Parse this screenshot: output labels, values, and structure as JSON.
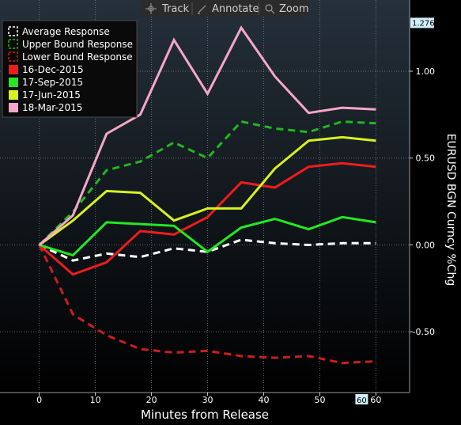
{
  "toolbar": {
    "track_label": "Track",
    "annotate_label": "Annotate",
    "zoom_label": "Zoom"
  },
  "colors": {
    "background_top": "#25303b",
    "background_bottom": "#000000",
    "axis_text": "#ffffff",
    "last_price_tag": "#cfeffb",
    "toolbar_bg": "#2b2b2b"
  },
  "chart_data": {
    "type": "line",
    "xlabel": "Minutes from Release",
    "ylabel": "EURUSD BGN Curncy %Chg",
    "xlim": [
      -7,
      66
    ],
    "ylim": [
      -0.85,
      1.41
    ],
    "x_ticks": [
      0,
      10,
      20,
      30,
      40,
      50,
      60
    ],
    "y_ticks": [
      1.0,
      0.5,
      0.0,
      -0.5
    ],
    "y_tick_labels": [
      "1.00",
      "0.50",
      "0.00",
      "-0.50"
    ],
    "y_last_value_label": "1.276",
    "y_last_value": 1.276,
    "x_last_value_label": "60",
    "grid": true,
    "legend_position": "top-left",
    "series": [
      {
        "name": "Average Response",
        "color": "#ffffff",
        "dash": true,
        "x": [
          0,
          6,
          12,
          18,
          24,
          30,
          36,
          42,
          48,
          54,
          60
        ],
        "y": [
          0.0,
          -0.09,
          -0.05,
          -0.07,
          -0.02,
          -0.04,
          0.03,
          0.01,
          0.0,
          0.01,
          0.01
        ]
      },
      {
        "name": "Upper Bound Response",
        "color": "#1fb81f",
        "dash": true,
        "x": [
          0,
          6,
          12,
          18,
          24,
          30,
          36,
          42,
          48,
          54,
          60
        ],
        "y": [
          0.0,
          0.19,
          0.43,
          0.48,
          0.59,
          0.5,
          0.71,
          0.67,
          0.65,
          0.71,
          0.7
        ]
      },
      {
        "name": "Lower Bound Response",
        "color": "#cc1e1e",
        "dash": true,
        "x": [
          0,
          6,
          12,
          18,
          24,
          30,
          36,
          42,
          48,
          54,
          60
        ],
        "y": [
          0.0,
          -0.4,
          -0.52,
          -0.6,
          -0.62,
          -0.61,
          -0.64,
          -0.65,
          -0.64,
          -0.68,
          -0.67
        ]
      },
      {
        "name": "16-Dec-2015",
        "color": "#ee1c1c",
        "dash": false,
        "x": [
          0,
          6,
          12,
          18,
          24,
          30,
          36,
          42,
          48,
          54,
          60
        ],
        "y": [
          0.0,
          -0.17,
          -0.1,
          0.08,
          0.06,
          0.16,
          0.36,
          0.33,
          0.45,
          0.47,
          0.45
        ]
      },
      {
        "name": "17-Sep-2015",
        "color": "#22e822",
        "dash": false,
        "x": [
          0,
          6,
          12,
          18,
          24,
          30,
          36,
          42,
          48,
          54,
          60
        ],
        "y": [
          0.0,
          -0.06,
          0.13,
          0.12,
          0.11,
          -0.04,
          0.1,
          0.15,
          0.09,
          0.16,
          0.13
        ]
      },
      {
        "name": "17-Jun-2015",
        "color": "#d8f21c",
        "dash": false,
        "x": [
          0,
          6,
          12,
          18,
          24,
          30,
          36,
          42,
          48,
          54,
          60
        ],
        "y": [
          0.0,
          0.14,
          0.31,
          0.3,
          0.14,
          0.21,
          0.21,
          0.44,
          0.6,
          0.62,
          0.6
        ]
      },
      {
        "name": "18-Mar-2015",
        "color": "#f7a6c9",
        "dash": false,
        "x": [
          0,
          6,
          12,
          18,
          24,
          30,
          36,
          42,
          48,
          54,
          60
        ],
        "y": [
          0.0,
          0.17,
          0.64,
          0.75,
          1.18,
          0.87,
          1.25,
          0.97,
          0.76,
          0.79,
          0.78
        ]
      }
    ]
  }
}
